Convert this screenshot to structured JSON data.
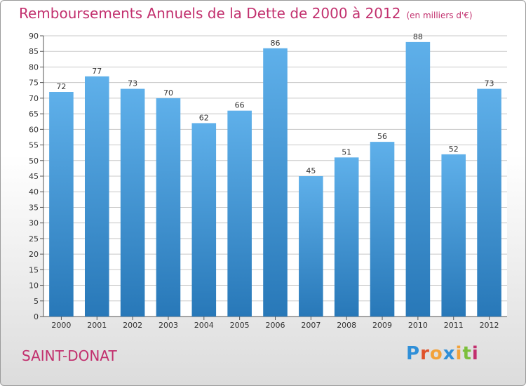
{
  "chart_data": {
    "type": "bar",
    "title": "Remboursements Annuels de la Dette de 2000 à 2012",
    "subtitle": "(en milliers d'€)",
    "categories": [
      "2000",
      "2001",
      "2002",
      "2003",
      "2004",
      "2005",
      "2006",
      "2007",
      "2008",
      "2009",
      "2010",
      "2011",
      "2012"
    ],
    "values": [
      72,
      77,
      73,
      70,
      62,
      66,
      86,
      45,
      51,
      56,
      88,
      52,
      73
    ],
    "ylim": [
      0,
      90
    ],
    "yticks": [
      0,
      5,
      10,
      15,
      20,
      25,
      30,
      35,
      40,
      45,
      50,
      55,
      60,
      65,
      70,
      75,
      80,
      85,
      90
    ],
    "grid": "horizontal",
    "bar_color_top": "#5fb0ea",
    "bar_color_bottom": "#2878b8",
    "grid_color": "#c8c8c8",
    "title_color": "#c2306e"
  },
  "place": "SAINT-DONAT",
  "brand": {
    "letters": [
      "P",
      "r",
      "o",
      "x",
      "i",
      "t",
      "i"
    ],
    "colors": [
      "#2f8fd8",
      "#e0522a",
      "#f2a23a",
      "#2f8fd8",
      "#f2a23a",
      "#7cbf3a",
      "#c2306e"
    ]
  }
}
